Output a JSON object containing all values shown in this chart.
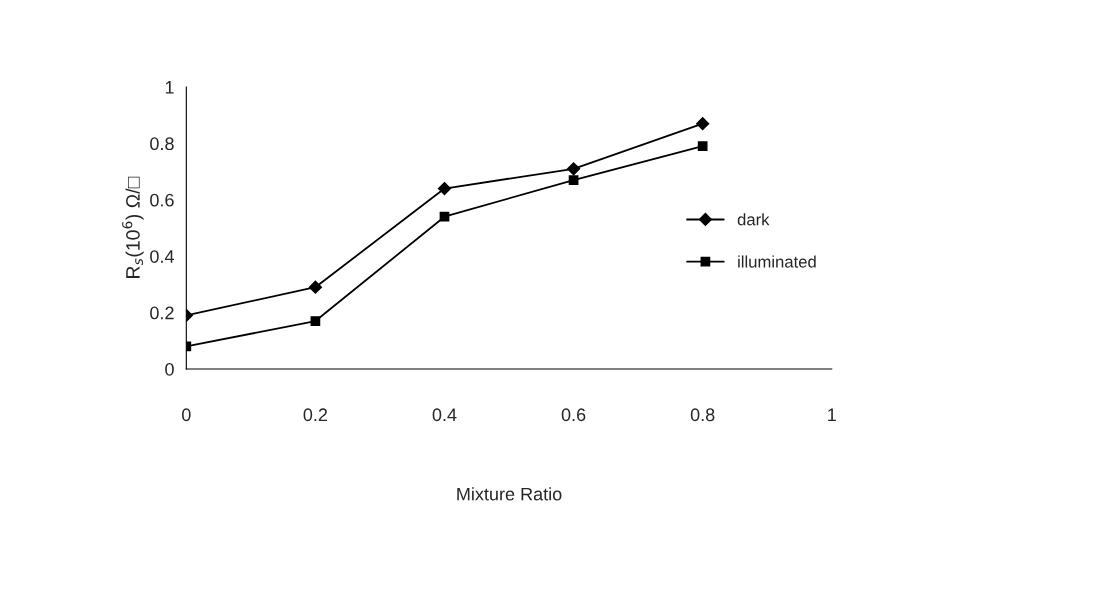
{
  "chart_data": {
    "type": "line",
    "xlabel": "Mixture Ratio",
    "ylabel": "R$_{s}$(10$^{6}$) Ω/□",
    "x": [
      0,
      0.2,
      0.4,
      0.6,
      0.8
    ],
    "series": [
      {
        "name": "dark",
        "color": "#000000",
        "marker": "diamond",
        "values": [
          0.19,
          0.29,
          0.64,
          0.71,
          0.87
        ]
      },
      {
        "name": "illuminated",
        "color": "#000000",
        "marker": "square",
        "values": [
          0.08,
          0.17,
          0.54,
          0.67,
          0.79
        ]
      }
    ],
    "xlim": [
      0,
      1
    ],
    "xticks": [
      0,
      0.2,
      0.4,
      0.6,
      0.8,
      1
    ],
    "ylim": [
      0,
      1
    ],
    "yticks": [
      0,
      0.2,
      0.4,
      0.6,
      0.8,
      1
    ],
    "grid": false,
    "legend": "right",
    "line_style": "solid"
  }
}
